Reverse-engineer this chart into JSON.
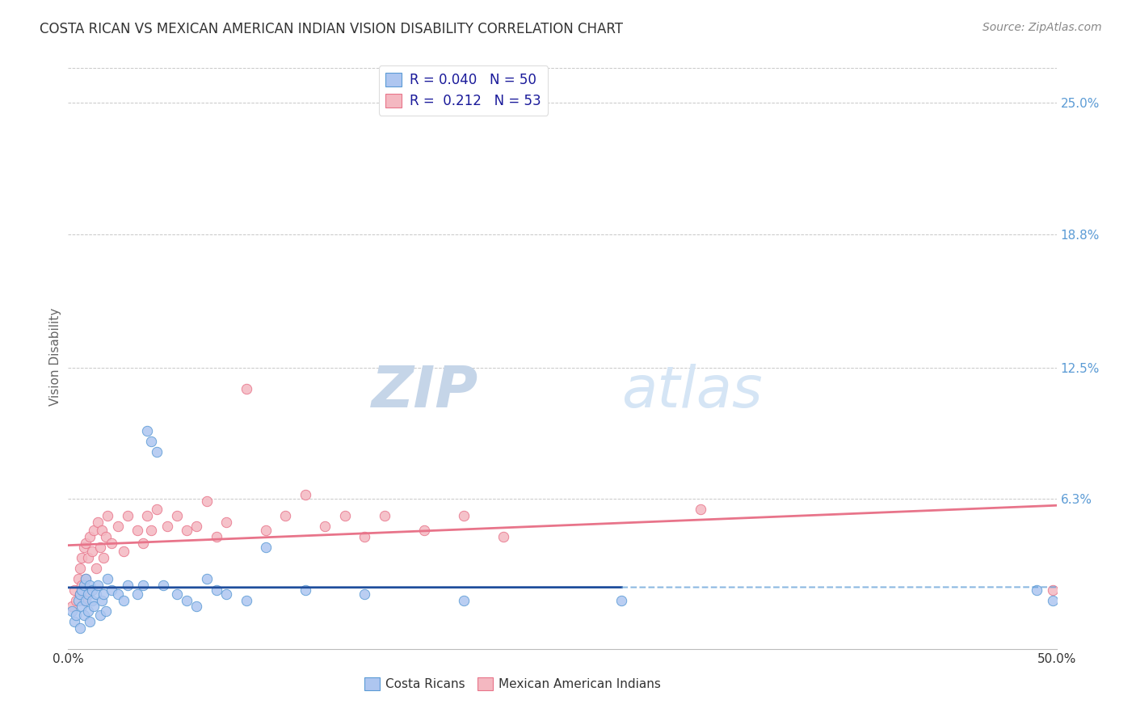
{
  "title": "COSTA RICAN VS MEXICAN AMERICAN INDIAN VISION DISABILITY CORRELATION CHART",
  "source": "Source: ZipAtlas.com",
  "ylabel": "Vision Disability",
  "ytick_labels": [
    "25.0%",
    "18.8%",
    "12.5%",
    "6.3%"
  ],
  "ytick_values": [
    0.25,
    0.188,
    0.125,
    0.063
  ],
  "xlim": [
    0.0,
    0.5
  ],
  "ylim": [
    -0.008,
    0.268
  ],
  "watermark_zip": "ZIP",
  "watermark_atlas": "atlas",
  "legend_r1": "R = 0.040   N = 50",
  "legend_r2": "R =  0.212   N = 53",
  "costa_rican_x": [
    0.002,
    0.003,
    0.004,
    0.005,
    0.006,
    0.006,
    0.007,
    0.007,
    0.008,
    0.008,
    0.009,
    0.009,
    0.01,
    0.01,
    0.011,
    0.011,
    0.012,
    0.012,
    0.013,
    0.014,
    0.015,
    0.016,
    0.017,
    0.018,
    0.019,
    0.02,
    0.022,
    0.025,
    0.028,
    0.03,
    0.035,
    0.038,
    0.04,
    0.042,
    0.045,
    0.048,
    0.055,
    0.06,
    0.065,
    0.07,
    0.075,
    0.08,
    0.09,
    0.1,
    0.12,
    0.15,
    0.2,
    0.28,
    0.49,
    0.498
  ],
  "costa_rican_y": [
    0.01,
    0.005,
    0.008,
    0.015,
    0.002,
    0.018,
    0.012,
    0.02,
    0.008,
    0.022,
    0.015,
    0.025,
    0.01,
    0.018,
    0.005,
    0.022,
    0.015,
    0.02,
    0.012,
    0.018,
    0.022,
    0.008,
    0.015,
    0.018,
    0.01,
    0.025,
    0.02,
    0.018,
    0.015,
    0.022,
    0.018,
    0.022,
    0.095,
    0.09,
    0.085,
    0.022,
    0.018,
    0.015,
    0.012,
    0.025,
    0.02,
    0.018,
    0.015,
    0.04,
    0.02,
    0.018,
    0.015,
    0.015,
    0.02,
    0.015
  ],
  "mexican_x": [
    0.002,
    0.003,
    0.004,
    0.005,
    0.006,
    0.006,
    0.007,
    0.007,
    0.008,
    0.008,
    0.009,
    0.009,
    0.01,
    0.01,
    0.011,
    0.012,
    0.013,
    0.014,
    0.015,
    0.016,
    0.017,
    0.018,
    0.019,
    0.02,
    0.022,
    0.025,
    0.028,
    0.03,
    0.035,
    0.038,
    0.04,
    0.042,
    0.045,
    0.05,
    0.055,
    0.06,
    0.065,
    0.07,
    0.075,
    0.08,
    0.09,
    0.1,
    0.11,
    0.12,
    0.13,
    0.14,
    0.15,
    0.16,
    0.18,
    0.2,
    0.22,
    0.32,
    0.498
  ],
  "mexican_y": [
    0.012,
    0.02,
    0.015,
    0.025,
    0.018,
    0.03,
    0.022,
    0.035,
    0.015,
    0.04,
    0.025,
    0.042,
    0.018,
    0.035,
    0.045,
    0.038,
    0.048,
    0.03,
    0.052,
    0.04,
    0.048,
    0.035,
    0.045,
    0.055,
    0.042,
    0.05,
    0.038,
    0.055,
    0.048,
    0.042,
    0.055,
    0.048,
    0.058,
    0.05,
    0.055,
    0.048,
    0.05,
    0.062,
    0.045,
    0.052,
    0.115,
    0.048,
    0.055,
    0.065,
    0.05,
    0.055,
    0.045,
    0.055,
    0.048,
    0.055,
    0.045,
    0.058,
    0.02
  ],
  "blue_color": "#5b9bd5",
  "blue_fill": "#aec6f0",
  "pink_color": "#e8748a",
  "pink_fill": "#f4b8c1",
  "trend_blue_solid_end": 0.28,
  "trend_blue_color": "#1f4e9c",
  "trend_pink_color": "#e8748a",
  "background_color": "#ffffff",
  "grid_color": "#c8c8c8",
  "title_fontsize": 12,
  "source_fontsize": 10,
  "axis_label_fontsize": 11,
  "tick_fontsize": 11,
  "legend_fontsize": 12
}
